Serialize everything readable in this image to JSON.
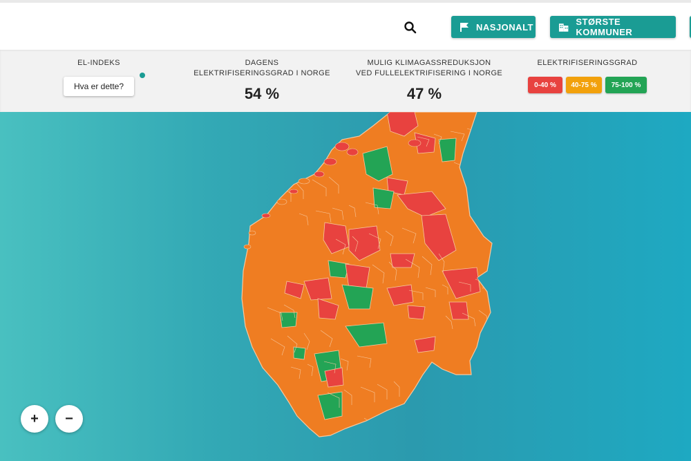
{
  "header": {
    "buttons": [
      {
        "label": "NASJONALT",
        "icon": "flag-icon"
      },
      {
        "label": "STØRSTE KOMMUNER",
        "icon": "building-icon"
      }
    ]
  },
  "stats": {
    "el_index": {
      "label": "EL-INDEKS",
      "button_label": "Hva er dette?"
    },
    "current": {
      "label_line1": "DAGENS",
      "label_line2": "ELEKTRIFISERINGSGRAD I NORGE",
      "value": "54 %"
    },
    "reduction": {
      "label_line1": "MULIG KLIMAGASSREDUKSJON",
      "label_line2": "VED FULLELEKTRIFISERING I NORGE",
      "value": "47 %"
    },
    "legend": {
      "title": "ELEKTRIFISERINGSGRAD",
      "items": [
        {
          "label": "0-40 %",
          "color": "#e8423f"
        },
        {
          "label": "40-75 %",
          "color": "#f2a10c"
        },
        {
          "label": "75-100 %",
          "color": "#23a455"
        }
      ]
    }
  },
  "map": {
    "colors": {
      "low": "#e8423f",
      "mid": "#ef7d22",
      "high": "#23a455",
      "sea": "#2b9aae"
    },
    "zoom_in_label": "+",
    "zoom_out_label": "−"
  }
}
